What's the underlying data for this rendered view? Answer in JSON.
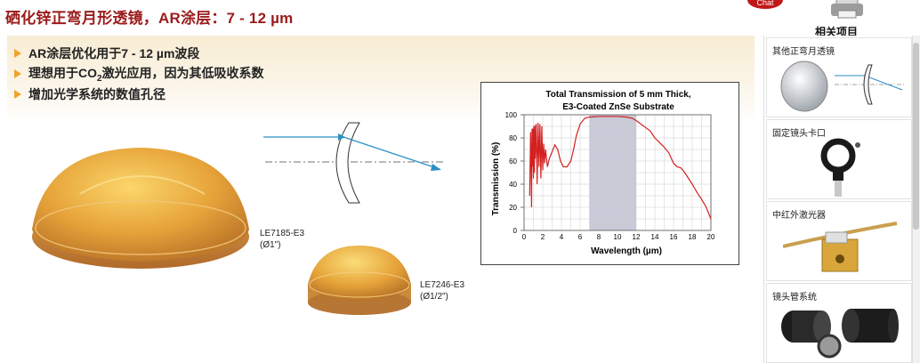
{
  "page": {
    "title": "硒化锌正弯月形透镜，AR涂层：7 - 12 µm",
    "chat_badge": "Chat",
    "related_label": "相关项目"
  },
  "bullets": [
    {
      "text": "AR涂层优化用于7 - 12 µm波段"
    },
    {
      "pre": "理想用于CO",
      "sub": "2",
      "post": "激光应用，因为其低吸收系数"
    },
    {
      "text": "增加光学系统的数值孔径"
    }
  ],
  "lenses": [
    {
      "part": "LE7185-E3",
      "size": "(Ø1\")"
    },
    {
      "part": "LE7246-E3",
      "size": "(Ø1/2\")"
    }
  ],
  "chart_data": {
    "type": "line",
    "title": "Total Transmission of 5 mm Thick,",
    "subtitle": "E3-Coated ZnSe Substrate",
    "xlabel": "Wavelength (µm)",
    "ylabel": "Transmission (%)",
    "xlim": [
      0,
      20
    ],
    "ylim": [
      0,
      100
    ],
    "xticks": [
      0,
      2,
      4,
      6,
      8,
      10,
      12,
      14,
      16,
      18,
      20
    ],
    "yticks": [
      0,
      20,
      40,
      60,
      80,
      100
    ],
    "grid": true,
    "highlight_band": [
      7,
      12
    ],
    "colors": {
      "line": "#d42020",
      "band": "#c9cad8",
      "grid": "#cccccc"
    },
    "series": [
      {
        "values": [
          [
            0.6,
            30
          ],
          [
            0.7,
            85
          ],
          [
            0.75,
            60
          ],
          [
            0.8,
            20
          ],
          [
            0.85,
            88
          ],
          [
            0.9,
            55
          ],
          [
            0.95,
            88
          ],
          [
            1.0,
            45
          ],
          [
            1.05,
            90
          ],
          [
            1.1,
            50
          ],
          [
            1.15,
            91
          ],
          [
            1.2,
            62
          ],
          [
            1.3,
            92
          ],
          [
            1.4,
            40
          ],
          [
            1.5,
            93
          ],
          [
            1.6,
            55
          ],
          [
            1.7,
            92
          ],
          [
            1.8,
            45
          ],
          [
            1.9,
            90
          ],
          [
            2.0,
            52
          ],
          [
            2.1,
            75
          ],
          [
            2.2,
            58
          ],
          [
            2.3,
            70
          ],
          [
            2.5,
            55
          ],
          [
            2.7,
            62
          ],
          [
            3.0,
            68
          ],
          [
            3.3,
            74
          ],
          [
            3.6,
            70
          ],
          [
            3.9,
            60
          ],
          [
            4.2,
            55
          ],
          [
            4.6,
            55
          ],
          [
            5.0,
            60
          ],
          [
            5.3,
            70
          ],
          [
            5.6,
            82
          ],
          [
            6.0,
            92
          ],
          [
            6.5,
            97
          ],
          [
            7.0,
            98
          ],
          [
            8.0,
            98.5
          ],
          [
            9.0,
            98.5
          ],
          [
            10.0,
            98.5
          ],
          [
            11.0,
            98
          ],
          [
            11.6,
            97
          ],
          [
            12.0,
            95
          ],
          [
            12.5,
            92
          ],
          [
            13.0,
            89
          ],
          [
            13.5,
            86
          ],
          [
            14.0,
            80
          ],
          [
            14.5,
            76
          ],
          [
            15.0,
            72
          ],
          [
            15.5,
            67
          ],
          [
            16.0,
            58
          ],
          [
            16.4,
            55
          ],
          [
            16.8,
            54
          ],
          [
            17.2,
            50
          ],
          [
            17.6,
            45
          ],
          [
            18.0,
            40
          ],
          [
            18.5,
            33
          ],
          [
            19.0,
            27
          ],
          [
            19.5,
            20
          ],
          [
            20.0,
            10
          ]
        ]
      }
    ]
  },
  "sidebar": {
    "items": [
      {
        "label": "其他正弯月透镜"
      },
      {
        "label": "固定镜头卡口"
      },
      {
        "label": "中红外激光器"
      },
      {
        "label": "镜头管系统"
      }
    ]
  }
}
